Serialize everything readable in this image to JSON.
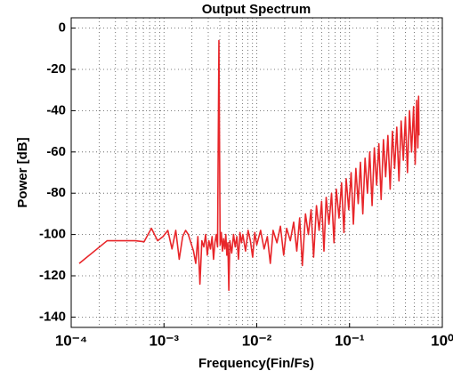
{
  "chart_data": {
    "type": "line",
    "title": "Output Spectrum",
    "xlabel": "Frequency(Fin/Fs)",
    "ylabel": "Power [dB]",
    "xscale": "log",
    "xlim": [
      0.0001,
      1
    ],
    "ylim": [
      -145,
      5
    ],
    "grid": true,
    "xticks": [
      {
        "value": 0.0001,
        "label": "10⁻⁴"
      },
      {
        "value": 0.001,
        "label": "10⁻³"
      },
      {
        "value": 0.01,
        "label": "10⁻²"
      },
      {
        "value": 0.1,
        "label": "10⁻¹"
      },
      {
        "value": 1,
        "label": "10⁰"
      }
    ],
    "xminorticks": [
      0.0002,
      0.0003,
      0.0004,
      0.0005,
      0.0006,
      0.0007,
      0.0008,
      0.0009,
      0.002,
      0.003,
      0.004,
      0.005,
      0.006,
      0.007,
      0.008,
      0.009,
      0.02,
      0.03,
      0.04,
      0.05,
      0.06,
      0.07,
      0.08,
      0.09,
      0.2,
      0.3,
      0.4,
      0.5,
      0.6,
      0.7,
      0.8,
      0.9
    ],
    "yticks": [
      0,
      -20,
      -40,
      -60,
      -80,
      -100,
      -120,
      -140
    ],
    "series": [
      {
        "color": "#e8262a",
        "x": [
          0.000122,
          0.000244,
          0.000488,
          0.00061,
          0.000732,
          0.000854,
          0.000977,
          0.0011,
          0.00122,
          0.00134,
          0.00146,
          0.00159,
          0.00171,
          0.00183,
          0.00195,
          0.00208,
          0.0022,
          0.00232,
          0.00244,
          0.00256,
          0.00269,
          0.00281,
          0.00293,
          0.00305,
          0.00317,
          0.0033,
          0.00342,
          0.00354,
          0.00366,
          0.00378,
          0.00391,
          0.00403,
          0.00415,
          0.00427,
          0.00439,
          0.00452,
          0.00464,
          0.00476,
          0.00488,
          0.005,
          0.00513,
          0.00537,
          0.00562,
          0.00586,
          0.0061,
          0.00635,
          0.00659,
          0.00684,
          0.00708,
          0.00757,
          0.00806,
          0.00854,
          0.00903,
          0.00952,
          0.01,
          0.011,
          0.012,
          0.013,
          0.014,
          0.015,
          0.0165,
          0.018,
          0.0195,
          0.021,
          0.023,
          0.025,
          0.027,
          0.029,
          0.031,
          0.0335,
          0.036,
          0.0385,
          0.041,
          0.044,
          0.047,
          0.05,
          0.053,
          0.056,
          0.06,
          0.064,
          0.068,
          0.072,
          0.077,
          0.082,
          0.087,
          0.092,
          0.098,
          0.104,
          0.11,
          0.117,
          0.124,
          0.131,
          0.139,
          0.147,
          0.156,
          0.165,
          0.175,
          0.185,
          0.196,
          0.207,
          0.219,
          0.232,
          0.245,
          0.259,
          0.274,
          0.29,
          0.306,
          0.323,
          0.341,
          0.36,
          0.38,
          0.4,
          0.421,
          0.443,
          0.466,
          0.49,
          0.51,
          0.53,
          0.545,
          0.555,
          0.56
        ],
        "values": [
          -114,
          -103,
          -103,
          -103.5,
          -97,
          -103,
          -101,
          -98,
          -107,
          -98,
          -112,
          -101,
          -98,
          -100,
          -104,
          -108,
          -114,
          -101,
          -124,
          -103,
          -106,
          -100,
          -110,
          -103,
          -107,
          -101,
          -112,
          -104,
          -100,
          -106,
          -6,
          -105,
          -99,
          -108,
          -102,
          -107,
          -100,
          -110,
          -104,
          -127,
          -103,
          -109,
          -100,
          -106,
          -101,
          -112,
          -99,
          -104,
          -100,
          -108,
          -98,
          -103,
          -111,
          -99,
          -105,
          -98,
          -107,
          -101,
          -114,
          -98,
          -104,
          -96,
          -110,
          -97,
          -103,
          -94,
          -108,
          -92,
          -115,
          -90,
          -100,
          -88,
          -111,
          -86,
          -98,
          -84,
          -108,
          -82,
          -95,
          -80,
          -104,
          -78,
          -92,
          -75,
          -99,
          -73,
          -88,
          -70,
          -95,
          -68,
          -85,
          -65,
          -90,
          -63,
          -80,
          -60,
          -86,
          -58,
          -76,
          -56,
          -83,
          -54,
          -72,
          -52,
          -78,
          -50,
          -68,
          -48,
          -74,
          -45,
          -64,
          -43,
          -70,
          -40,
          -60,
          -38,
          -66,
          -35,
          -58,
          -33,
          -52
        ]
      }
    ]
  }
}
